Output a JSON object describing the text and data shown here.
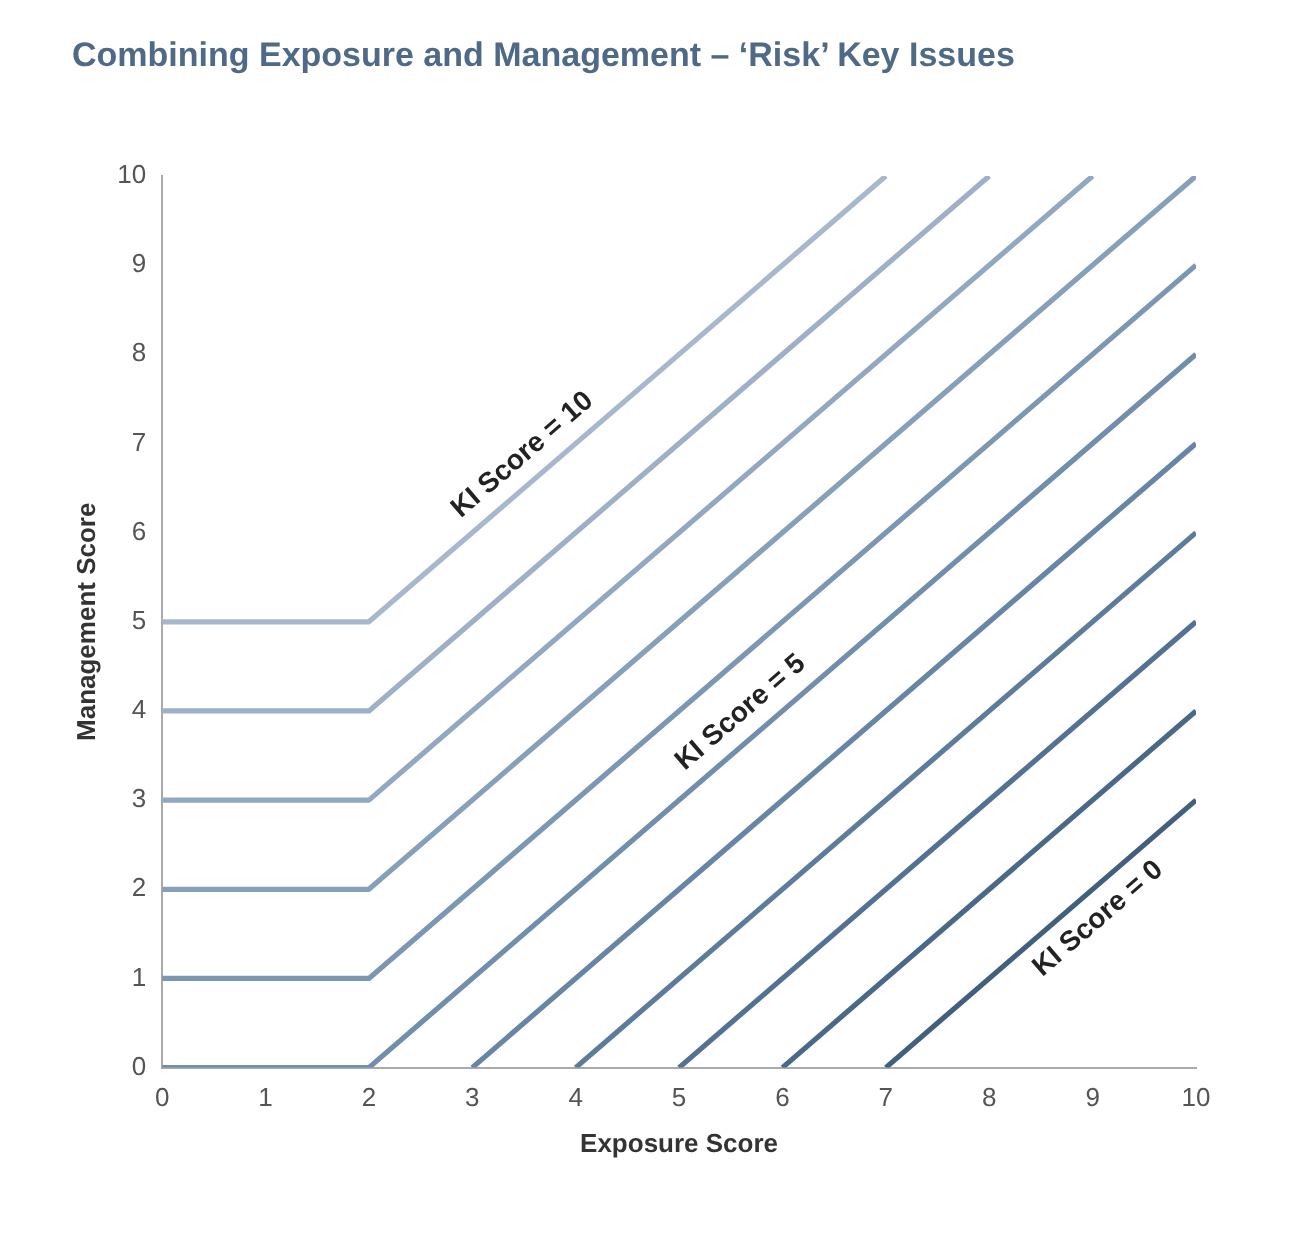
{
  "chart_data": {
    "type": "line",
    "title": "Combining Exposure and Management – ‘Risk’ Key Issues",
    "xlabel": "Exposure Score",
    "ylabel": "Management Score",
    "xlim": [
      0,
      10
    ],
    "ylim": [
      0,
      10
    ],
    "xticks": [
      0,
      1,
      2,
      3,
      4,
      5,
      6,
      7,
      8,
      9,
      10
    ],
    "yticks": [
      0,
      1,
      2,
      3,
      4,
      5,
      6,
      7,
      8,
      9,
      10
    ],
    "grid": false,
    "legend": false,
    "marker": "none",
    "line_style": "solid",
    "series": [
      {
        "name": "KI Score = 10",
        "color": "#a8b8cc",
        "x": [
          0,
          2,
          7
        ],
        "values": [
          5,
          5,
          10
        ]
      },
      {
        "color": "#9db0c6",
        "x": [
          0,
          2,
          8
        ],
        "values": [
          4,
          4,
          10
        ]
      },
      {
        "color": "#92a8c0",
        "x": [
          0,
          2,
          9
        ],
        "values": [
          3,
          3,
          10
        ]
      },
      {
        "color": "#87a0ba",
        "x": [
          0,
          2,
          10
        ],
        "values": [
          2,
          2,
          10
        ]
      },
      {
        "color": "#7c97b3",
        "x": [
          0,
          2,
          10
        ],
        "values": [
          1,
          1,
          9
        ]
      },
      {
        "name": "KI Score = 5",
        "color": "#718ead",
        "x": [
          0,
          2,
          10
        ],
        "values": [
          0,
          0,
          8
        ]
      },
      {
        "color": "#6785a5",
        "x": [
          3,
          10
        ],
        "values": [
          0,
          7
        ]
      },
      {
        "color": "#5d7c9c",
        "x": [
          4,
          10
        ],
        "values": [
          0,
          6
        ]
      },
      {
        "color": "#537293",
        "x": [
          5,
          10
        ],
        "values": [
          0,
          5
        ]
      },
      {
        "color": "#4a6989",
        "x": [
          6,
          10
        ],
        "values": [
          0,
          4
        ]
      },
      {
        "name": "KI Score = 0",
        "color": "#42607e",
        "x": [
          7,
          10
        ],
        "values": [
          0,
          3
        ]
      }
    ]
  }
}
